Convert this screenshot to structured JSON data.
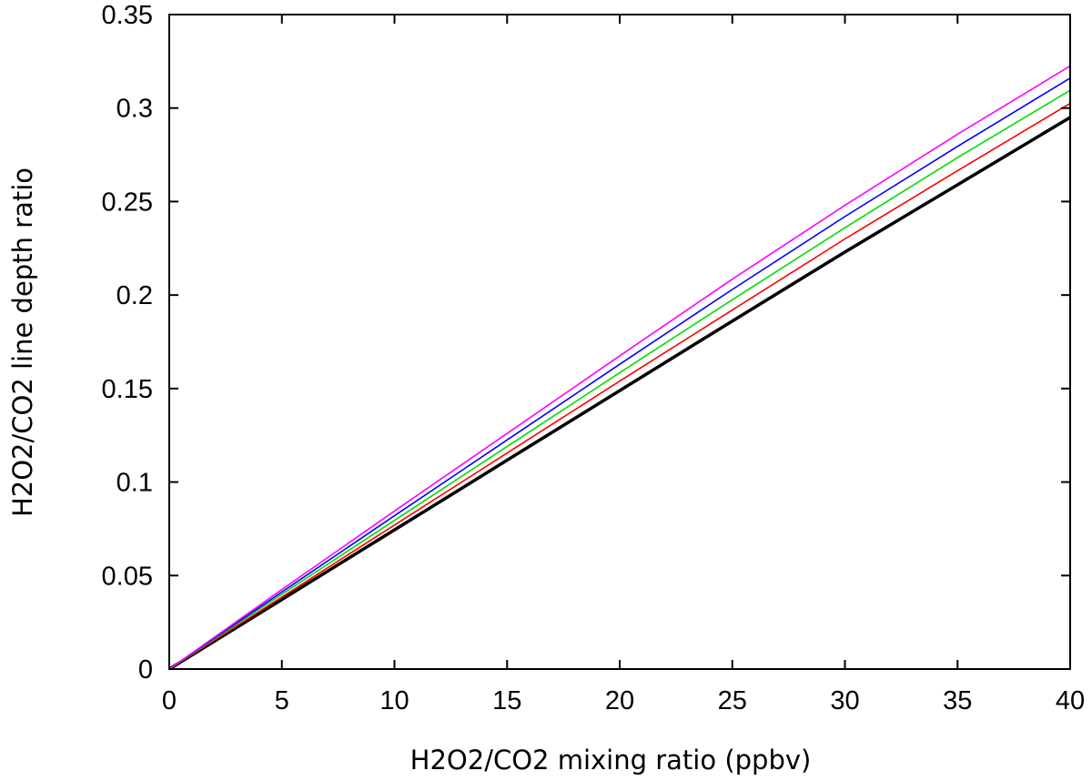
{
  "chart_data": {
    "type": "line",
    "title": "",
    "xlabel": "H2O2/CO2 mixing ratio (ppbv)",
    "ylabel": "H2O2/CO2 line depth ratio",
    "xlim": [
      0,
      40
    ],
    "ylim": [
      0,
      0.35
    ],
    "x_ticks": [
      "0",
      "5",
      "10",
      "15",
      "20",
      "25",
      "30",
      "35",
      "40"
    ],
    "y_ticks": [
      "0",
      "0.05",
      "0.1",
      "0.15",
      "0.2",
      "0.25",
      "0.3",
      "0.35"
    ],
    "x_tick_values": [
      0,
      5,
      10,
      15,
      20,
      25,
      30,
      35,
      40
    ],
    "y_tick_values": [
      0,
      0.05,
      0.1,
      0.15,
      0.2,
      0.25,
      0.3,
      0.35
    ],
    "grid": false,
    "legend": "none",
    "x": [
      0,
      5,
      10,
      15,
      20,
      25,
      30,
      35,
      40
    ],
    "series": [
      {
        "color": "#000000",
        "width": 3.5,
        "values": [
          0,
          0.0372,
          0.0744,
          0.1117,
          0.1489,
          0.1861,
          0.223,
          0.259,
          0.295
        ]
      },
      {
        "color": "#ff0000",
        "width": 1.6,
        "values": [
          0,
          0.0385,
          0.077,
          0.1155,
          0.154,
          0.192,
          0.23,
          0.2665,
          0.3025
        ]
      },
      {
        "color": "#00dd00",
        "width": 1.6,
        "values": [
          0,
          0.04,
          0.0795,
          0.119,
          0.1585,
          0.1975,
          0.236,
          0.2735,
          0.3095
        ]
      },
      {
        "color": "#0000ff",
        "width": 1.6,
        "values": [
          0,
          0.0412,
          0.082,
          0.1225,
          0.163,
          0.203,
          0.242,
          0.2795,
          0.316
        ]
      },
      {
        "color": "#ff00ff",
        "width": 1.6,
        "values": [
          0,
          0.0425,
          0.0845,
          0.126,
          0.1675,
          0.2085,
          0.248,
          0.286,
          0.3225
        ]
      }
    ]
  }
}
